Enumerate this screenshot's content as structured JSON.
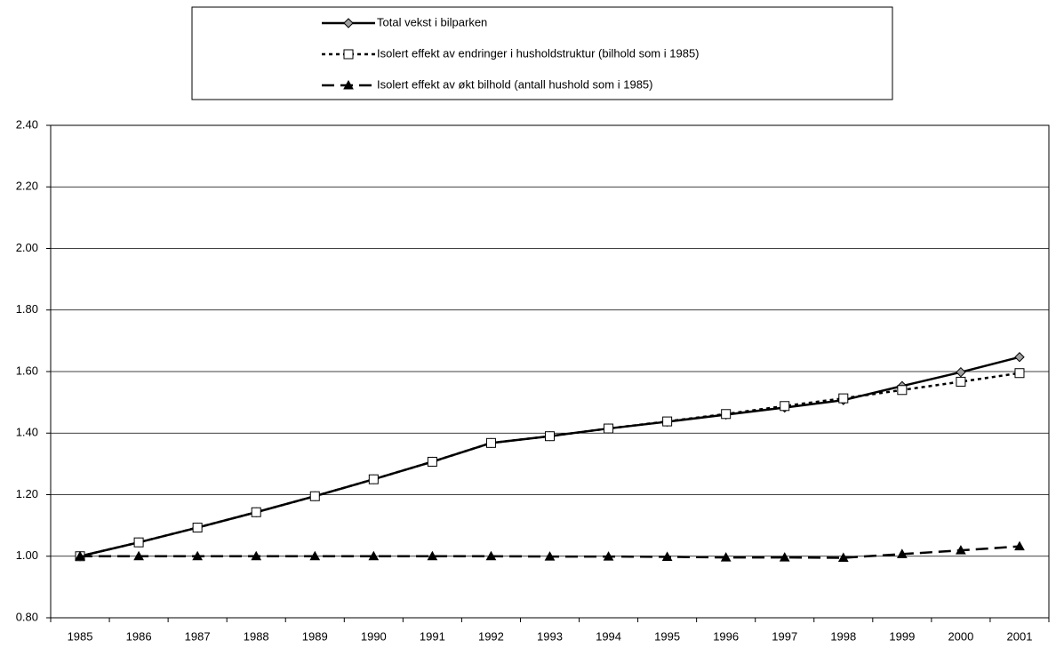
{
  "chart_data": {
    "type": "line",
    "categories": [
      "1985",
      "1986",
      "1987",
      "1988",
      "1989",
      "1990",
      "1991",
      "1992",
      "1993",
      "1994",
      "1995",
      "1996",
      "1997",
      "1998",
      "1999",
      "2000",
      "2001"
    ],
    "series": [
      {
        "name": "Total vekst i bilparken",
        "color": "#000000",
        "marker": "diamond",
        "marker_fill": "#a0a0a0",
        "dash": "solid",
        "values": [
          1.0,
          1.045,
          1.093,
          1.143,
          1.195,
          1.25,
          1.307,
          1.368,
          1.39,
          1.415,
          1.437,
          1.46,
          1.483,
          1.507,
          1.553,
          1.598,
          1.647
        ]
      },
      {
        "name": "Isolert effekt av endringer i husholdstruktur (bilhold som i 1985)",
        "color": "#000000",
        "marker": "square",
        "marker_fill": "#ffffff",
        "dash": "dotted",
        "values": [
          1.0,
          1.045,
          1.093,
          1.143,
          1.195,
          1.25,
          1.307,
          1.368,
          1.39,
          1.415,
          1.438,
          1.462,
          1.488,
          1.513,
          1.54,
          1.567,
          1.595
        ]
      },
      {
        "name": "Isolert effekt av økt bilhold (antall hushold som i 1985)",
        "color": "#000000",
        "marker": "triangle",
        "marker_fill": "#000000",
        "dash": "dashed",
        "values": [
          1.0,
          1.0,
          1.0,
          1.0,
          1.0,
          1.0,
          1.0,
          1.0,
          0.999,
          0.999,
          0.998,
          0.996,
          0.996,
          0.995,
          1.007,
          1.019,
          1.032
        ]
      }
    ],
    "ylim": [
      0.8,
      2.4
    ],
    "yticks": [
      {
        "value": 0.8,
        "label": "0.80"
      },
      {
        "value": 1.0,
        "label": "1.00"
      },
      {
        "value": 1.2,
        "label": "1.20"
      },
      {
        "value": 1.4,
        "label": "1.40"
      },
      {
        "value": 1.6,
        "label": "1.60"
      },
      {
        "value": 1.8,
        "label": "1.80"
      },
      {
        "value": 2.0,
        "label": "2.00"
      },
      {
        "value": 2.2,
        "label": "2.20"
      },
      {
        "value": 2.4,
        "label": "2.40"
      }
    ],
    "grid": true,
    "legend": "top"
  }
}
